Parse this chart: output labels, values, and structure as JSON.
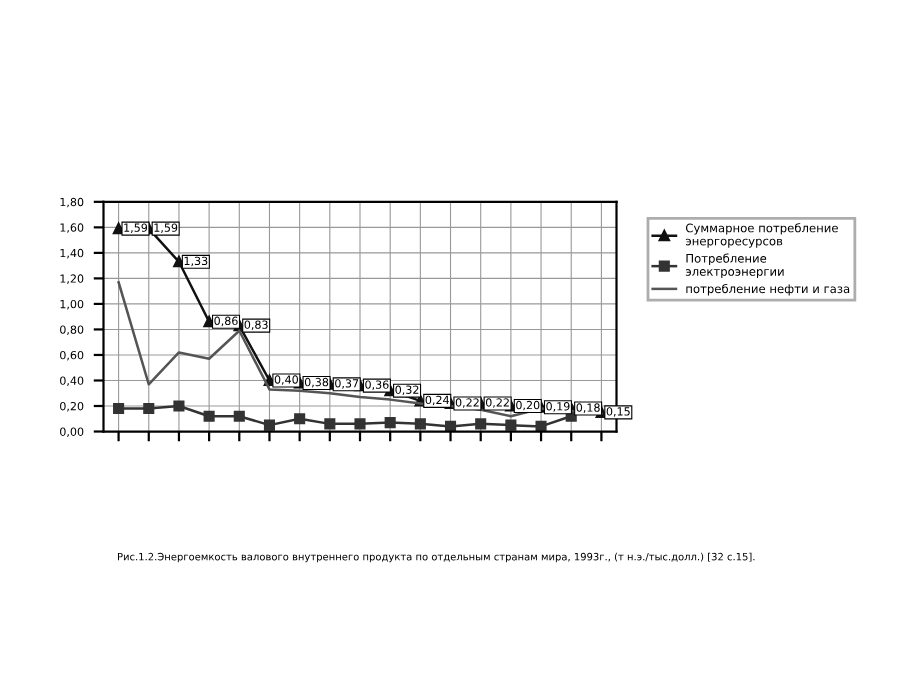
{
  "chart_data": {
    "type": "line",
    "categories": [
      null,
      null,
      null,
      null,
      null,
      null,
      null,
      null,
      null,
      null,
      null,
      null,
      null,
      null,
      null,
      null,
      null
    ],
    "series": [
      {
        "name": "Суммарное потребление энергоресурсов",
        "color": "#111111",
        "marker": "triangle",
        "values": [
          1.59,
          1.59,
          1.33,
          0.86,
          0.83,
          0.4,
          0.38,
          0.37,
          0.36,
          0.32,
          0.24,
          0.22,
          0.22,
          0.2,
          0.19,
          0.18,
          0.15
        ],
        "value_labels": [
          "1,59",
          "1,59",
          "1,33",
          "0,86",
          "0,83",
          "0,40",
          "0,38",
          "0,37",
          "0,36",
          "0,32",
          "0,24",
          "0,22",
          "0,22",
          "0,20",
          "0,19",
          "0,18",
          "0,15"
        ]
      },
      {
        "name": "Потребление электроэнергии",
        "color": "#333333",
        "marker": "square",
        "values": [
          0.18,
          0.18,
          0.2,
          0.12,
          0.12,
          0.05,
          0.1,
          0.06,
          0.06,
          0.07,
          0.06,
          0.04,
          0.06,
          0.05,
          0.04,
          0.12,
          null
        ]
      },
      {
        "name": "потребление нефти и газа",
        "color": "#555555",
        "marker": "none",
        "values": [
          1.17,
          0.37,
          0.62,
          0.57,
          0.79,
          0.33,
          0.32,
          0.3,
          0.27,
          0.25,
          0.22,
          0.2,
          0.17,
          0.12,
          0.18,
          0.16,
          0.14
        ]
      }
    ],
    "ylim": [
      0,
      1.8
    ],
    "yticks": [
      {
        "value": 0,
        "label": "0,00"
      },
      {
        "value": 0.2,
        "label": "0,20"
      },
      {
        "value": 0.4,
        "label": "0,40"
      },
      {
        "value": 0.6,
        "label": "0,60"
      },
      {
        "value": 0.8,
        "label": "0,80"
      },
      {
        "value": 1.0,
        "label": "1,00"
      },
      {
        "value": 1.2,
        "label": "1,20"
      },
      {
        "value": 1.4,
        "label": "1,40"
      },
      {
        "value": 1.6,
        "label": "1,60"
      },
      {
        "value": 1.8,
        "label": "1,80"
      }
    ],
    "grid": true,
    "legend": "right",
    "annotations": [
      "Рис.1.2.Энергоемкость валового внутреннего продукта по отдельным странам мира, 1993г., (т н.э./тыс.долл.) [32 с.15]."
    ]
  }
}
